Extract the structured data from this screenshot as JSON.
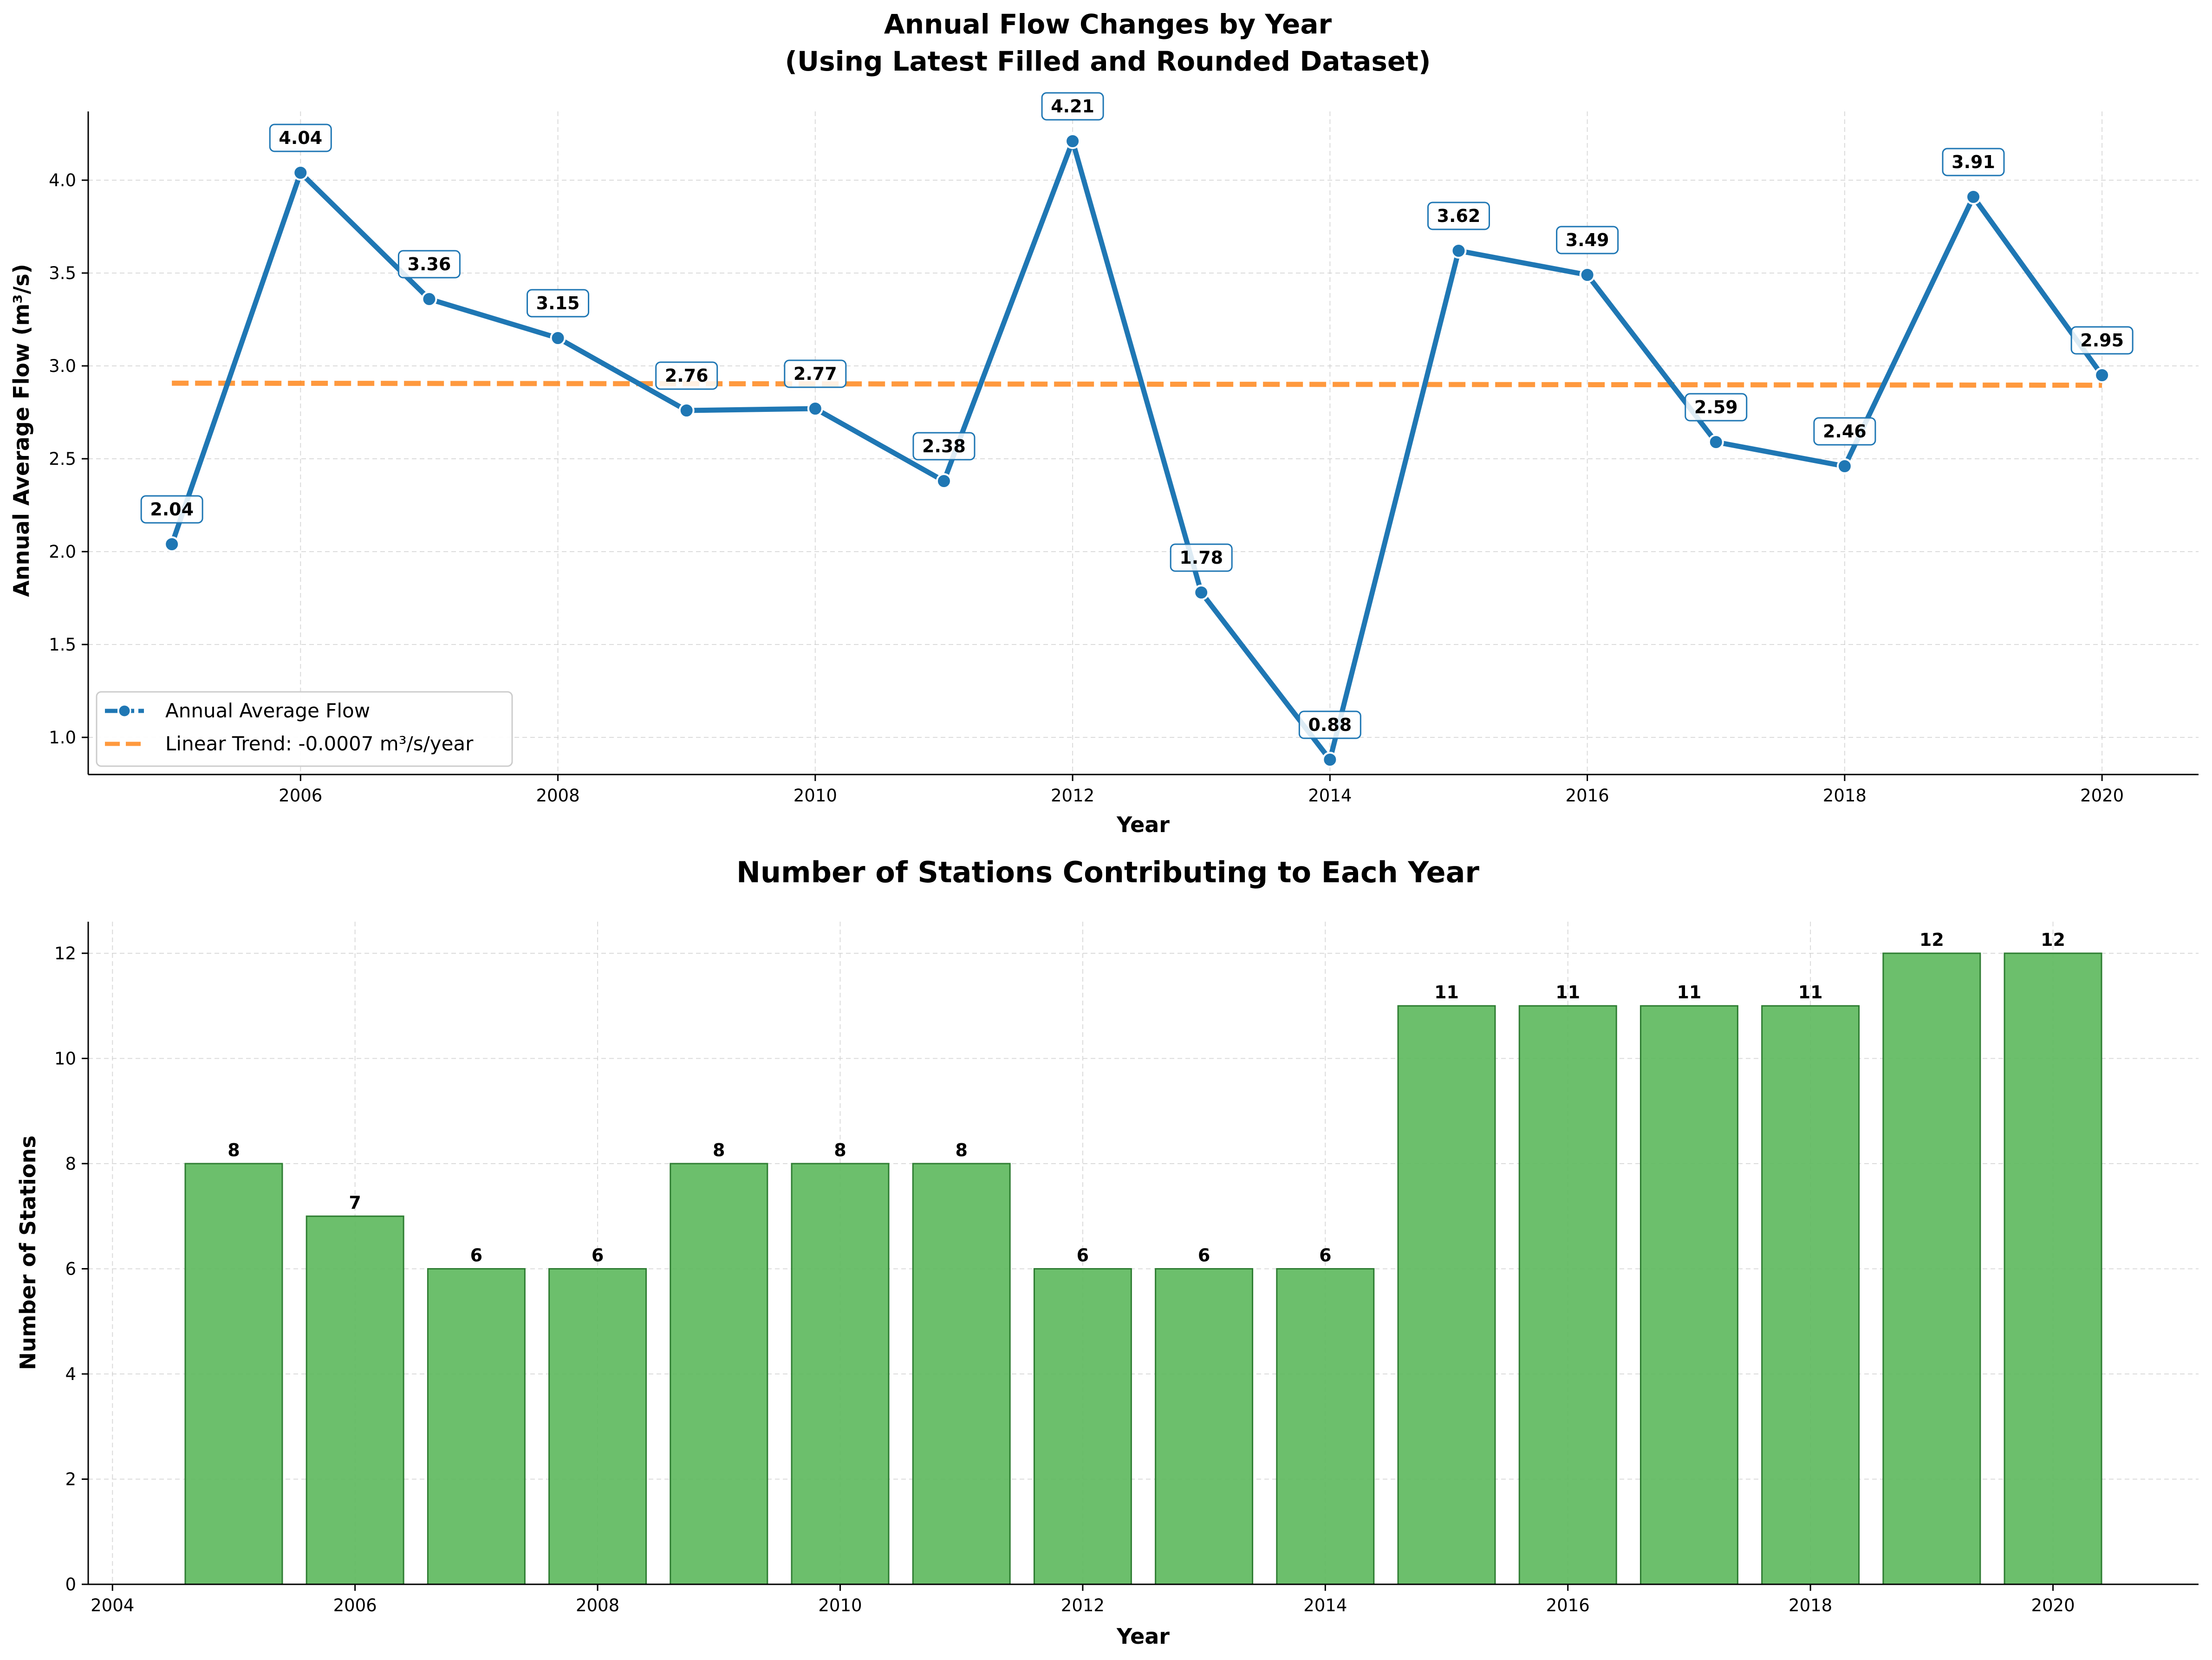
{
  "chart_data": [
    {
      "type": "line",
      "title_line1": "Annual Flow Changes by Year",
      "title_line2": "(Using Latest Filled and Rounded Dataset)",
      "xlabel": "Year",
      "ylabel": "Annual Average Flow (m³/s)",
      "xlim": [
        2004.35,
        2020.75
      ],
      "ylim": [
        0.8,
        4.37
      ],
      "xticks": [
        2006,
        2008,
        2010,
        2012,
        2014,
        2016,
        2018,
        2020
      ],
      "yticks": [
        1.0,
        1.5,
        2.0,
        2.5,
        3.0,
        3.5,
        4.0
      ],
      "grid": true,
      "legend_position": "lower-left",
      "series": [
        {
          "name": "Annual Average Flow",
          "color": "#1f77b4",
          "x": [
            2005,
            2006,
            2007,
            2008,
            2009,
            2010,
            2011,
            2012,
            2013,
            2014,
            2015,
            2016,
            2017,
            2018,
            2019,
            2020
          ],
          "values": [
            2.04,
            4.04,
            3.36,
            3.15,
            2.76,
            2.77,
            2.38,
            4.21,
            1.78,
            0.88,
            3.62,
            3.49,
            2.59,
            2.46,
            3.91,
            2.95
          ],
          "labels": [
            "2.04",
            "4.04",
            "3.36",
            "3.15",
            "2.76",
            "2.77",
            "2.38",
            "4.21",
            "1.78",
            "0.88",
            "3.62",
            "3.49",
            "2.59",
            "2.46",
            "3.91",
            "2.95"
          ]
        },
        {
          "name": "Linear Trend: -0.0007 m³/s/year",
          "color": "#ff7f0e",
          "style": "dashed",
          "x": [
            2005,
            2020
          ],
          "values": [
            2.907,
            2.896
          ]
        }
      ]
    },
    {
      "type": "bar",
      "title": "Number of Stations Contributing to Each Year",
      "xlabel": "Year",
      "ylabel": "Number of Stations",
      "xlim": [
        2003.8,
        2021.2
      ],
      "ylim": [
        0,
        12.6
      ],
      "xticks": [
        2004,
        2006,
        2008,
        2010,
        2012,
        2014,
        2016,
        2018,
        2020
      ],
      "yticks": [
        0,
        2,
        4,
        6,
        8,
        10,
        12
      ],
      "grid": true,
      "bar_color": "#5cb85c",
      "bar_edge_color": "#2e7d32",
      "categories": [
        2005,
        2006,
        2007,
        2008,
        2009,
        2010,
        2011,
        2012,
        2013,
        2014,
        2015,
        2016,
        2017,
        2018,
        2019,
        2020
      ],
      "values": [
        8,
        7,
        6,
        6,
        8,
        8,
        8,
        6,
        6,
        6,
        11,
        11,
        11,
        11,
        12,
        12
      ]
    }
  ]
}
